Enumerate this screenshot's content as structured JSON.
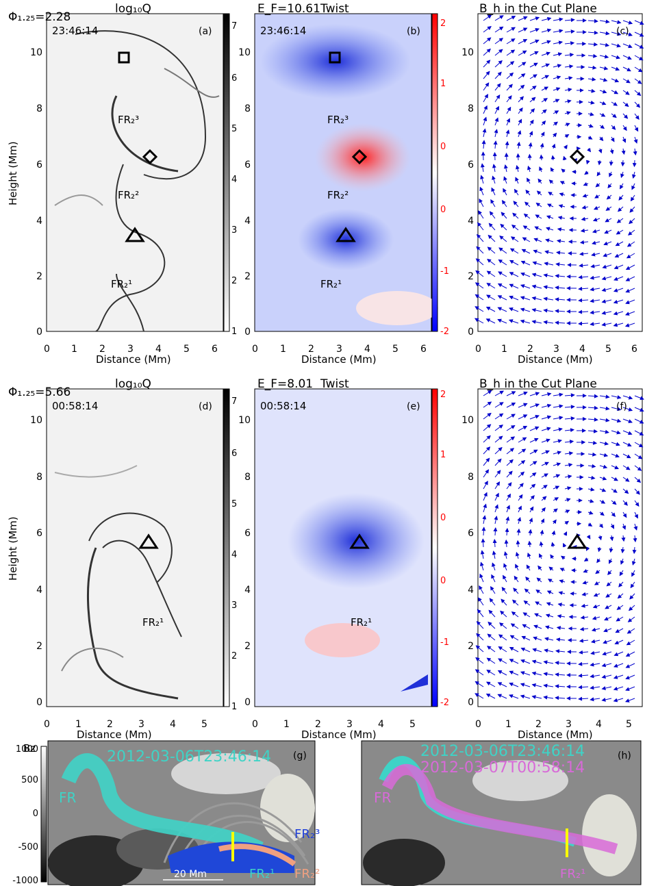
{
  "row1": {
    "phi": "Φ₁.₂₅=2.28",
    "ef": "E_F=10.61",
    "time": "23:46:14",
    "titles": [
      "log₁₀Q",
      "Twist",
      "B_h in the Cut Plane"
    ],
    "labels": [
      "(a)",
      "(b)",
      "(c)"
    ],
    "fr_labels": [
      "FR₂³",
      "FR₂²",
      "FR₂¹"
    ]
  },
  "row2": {
    "phi": "Φ₁.₂₅=5.66",
    "ef": "E_F=8.01",
    "time": "00:58:14",
    "titles": [
      "log₁₀Q",
      "Twist",
      "B_h in the Cut Plane"
    ],
    "labels": [
      "(d)",
      "(e)",
      "(f)"
    ],
    "fr_labels": [
      "FR₂¹"
    ]
  },
  "axes": {
    "xlabel": "Distance (Mm)",
    "ylabel": "Height (Mm)",
    "row1_xticks": [
      "0",
      "1",
      "2",
      "3",
      "4",
      "5",
      "6"
    ],
    "row2_xticks": [
      "0",
      "1",
      "2",
      "3",
      "4",
      "5"
    ],
    "yticks": [
      "0",
      "2",
      "4",
      "6",
      "8",
      "10"
    ]
  },
  "colorbars": {
    "logq_ticks": [
      "1",
      "2",
      "3",
      "4",
      "5",
      "6",
      "7"
    ],
    "twist_ticks": [
      "-2",
      "-1",
      "0",
      "0",
      "1",
      "2"
    ],
    "bz_label": "Bz",
    "bz_ticks": [
      "1000",
      "500",
      "0",
      "-500",
      "-1000"
    ]
  },
  "panel_g": {
    "date": "2012-03-06T23:46:14",
    "label": "(g)",
    "fr": "FR",
    "fr3": "FR₂³",
    "fr1": "FR₂¹",
    "fr2": "FR₂²",
    "scale": "20 Mm"
  },
  "panel_h": {
    "date1": "2012-03-06T23:46:14",
    "date2": "2012-03-07T00:58:14",
    "label": "(h)",
    "fr": "FR",
    "fr1": "FR₂¹"
  },
  "colors": {
    "cyan": "#3fd3c6",
    "magenta": "#d86ad8",
    "blue_arrow": "#1f3fd8",
    "salmon": "#f0a080",
    "red": "#ff0000"
  }
}
